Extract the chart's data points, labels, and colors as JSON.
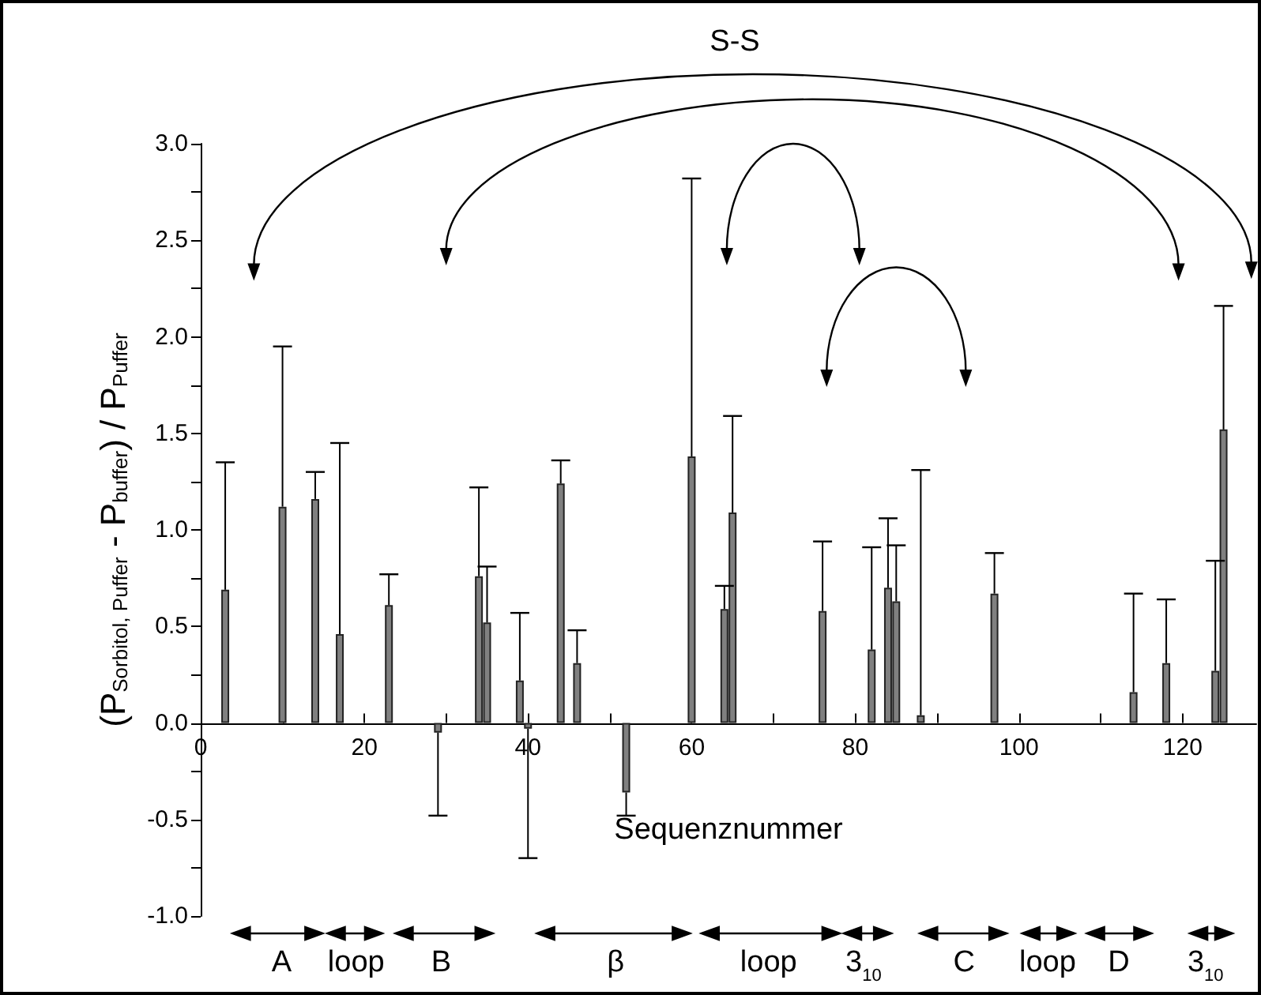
{
  "chart_data": {
    "type": "bar",
    "xlabel": "Sequenznummer",
    "ylabel": "(P$_{Sorbitol, Puffer}$ - P$_{buffer}$) / P$_{Puffer}$",
    "x": [
      3,
      10,
      14,
      17,
      23,
      29,
      34,
      35,
      39,
      40,
      44,
      46,
      52,
      60,
      64,
      65,
      76,
      82,
      84,
      85,
      88,
      97,
      114,
      118,
      124,
      125
    ],
    "values": [
      0.69,
      1.12,
      1.16,
      0.46,
      0.61,
      -0.05,
      0.76,
      0.52,
      0.22,
      -0.03,
      1.24,
      0.31,
      -0.36,
      1.38,
      0.59,
      1.09,
      0.58,
      0.38,
      0.7,
      0.63,
      0.04,
      0.67,
      0.16,
      0.31,
      0.27,
      1.52
    ],
    "errors": [
      [
        0.69,
        1.35
      ],
      [
        1.12,
        1.95
      ],
      [
        1.16,
        1.3
      ],
      [
        0.46,
        1.45
      ],
      [
        0.61,
        0.77
      ],
      [
        -0.48,
        -0.05
      ],
      [
        0.76,
        1.22
      ],
      [
        0.52,
        0.81
      ],
      [
        0.22,
        0.57
      ],
      [
        -0.7,
        -0.03
      ],
      [
        1.24,
        1.36
      ],
      [
        0.31,
        0.48
      ],
      [
        -0.48,
        -0.36
      ],
      [
        1.38,
        2.82
      ],
      [
        0.59,
        0.71
      ],
      [
        1.09,
        1.59
      ],
      [
        0.58,
        0.94
      ],
      [
        0.38,
        0.91
      ],
      [
        0.7,
        1.06
      ],
      [
        0.63,
        0.92
      ],
      [
        0.04,
        1.31
      ],
      [
        0.67,
        0.88
      ],
      [
        0.16,
        0.67
      ],
      [
        0.31,
        0.64
      ],
      [
        0.27,
        0.84
      ],
      [
        1.52,
        2.16
      ]
    ],
    "color": "#808080",
    "xlim": [
      0,
      129
    ],
    "xticks": [
      0,
      {
        "value": 10,
        "label": null
      },
      20,
      {
        "value": 30,
        "label": null
      },
      40,
      {
        "value": 50,
        "label": null
      },
      60,
      {
        "value": 70,
        "label": null
      },
      80,
      {
        "value": 90,
        "label": null
      },
      100,
      {
        "value": 110,
        "label": null
      },
      120
    ],
    "ylim": [
      -1,
      3
    ],
    "yticks": [
      {
        "value": -1,
        "label": "-1.0"
      },
      {
        "value": -0.75,
        "label": null
      },
      {
        "value": -0.5,
        "label": "-0.5"
      },
      {
        "value": -0.25,
        "label": null
      },
      {
        "value": 0,
        "label": "0.0"
      },
      {
        "value": 0.25,
        "label": null
      },
      {
        "value": 0.5,
        "label": "0.5"
      },
      {
        "value": 0.75,
        "label": null
      },
      {
        "value": 1,
        "label": "1.0"
      },
      {
        "value": 1.25,
        "label": null
      },
      {
        "value": 1.5,
        "label": "1.5"
      },
      {
        "value": 1.75,
        "label": null
      },
      {
        "value": 2,
        "label": "2.0"
      },
      {
        "value": 2.25,
        "label": null
      },
      {
        "value": 2.5,
        "label": "2.5"
      },
      {
        "value": 2.75,
        "label": null
      },
      {
        "value": 3,
        "label": "3.0"
      }
    ],
    "annotations": [
      "S-S",
      "A",
      "loop",
      "B",
      "β",
      "loop",
      "3$_{10}$",
      "C",
      "loop",
      "D",
      "3$_{10}$"
    ],
    "grid": false
  }
}
